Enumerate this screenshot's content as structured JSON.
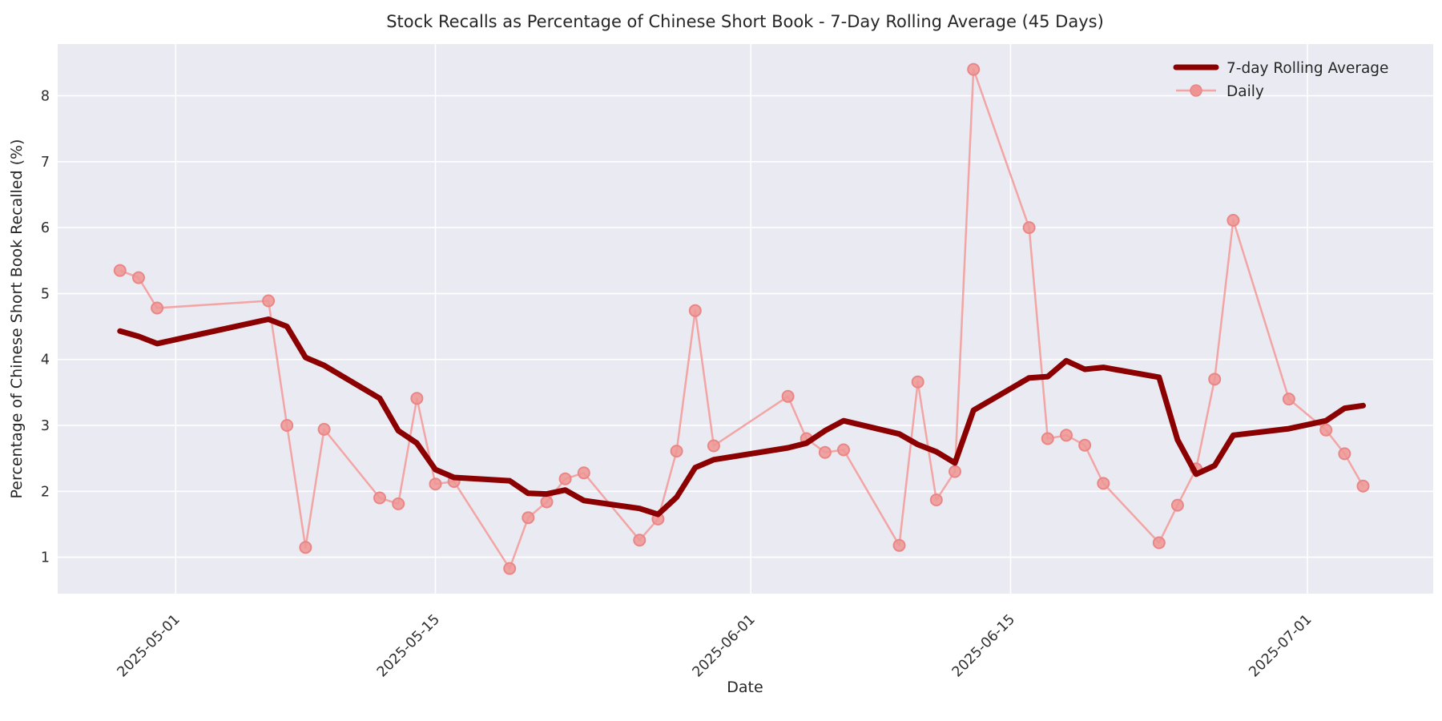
{
  "figure": {
    "title": "Stock Recalls as Percentage of Chinese Short Book - 7-Day Rolling Average (45 Days)",
    "xlabel": "Date",
    "ylabel": "Percentage of Chinese Short Book Recalled (%)"
  },
  "legend": {
    "rolling_label": "7-day Rolling Average",
    "daily_label": "Daily"
  },
  "colors": {
    "plot_bg": "#EAEAF2",
    "grid": "#FFFFFF",
    "rolling": "#8B0000",
    "daily_line": "#F2A5A4",
    "daily_marker_fill": "#EE9594",
    "daily_marker_edge": "#E98786",
    "text": "#262626"
  },
  "chart_data": {
    "type": "line",
    "title": "Stock Recalls as Percentage of Chinese Short Book - 7-Day Rolling Average (45 Days)",
    "xlabel": "Date",
    "ylabel": "Percentage of Chinese Short Book Recalled (%)",
    "grid": true,
    "legend_position": "upper right",
    "ylim": [
      0.45,
      8.78
    ],
    "y_ticks": [
      1,
      2,
      3,
      4,
      5,
      6,
      7,
      8
    ],
    "x_tick_labels": [
      "2025-05-01",
      "2025-05-15",
      "2025-06-01",
      "2025-06-15",
      "2025-07-01"
    ],
    "dates": [
      "2025-04-28",
      "2025-04-29",
      "2025-04-30",
      "2025-05-06",
      "2025-05-07",
      "2025-05-08",
      "2025-05-09",
      "2025-05-12",
      "2025-05-13",
      "2025-05-14",
      "2025-05-15",
      "2025-05-16",
      "2025-05-19",
      "2025-05-20",
      "2025-05-21",
      "2025-05-22",
      "2025-05-23",
      "2025-05-26",
      "2025-05-27",
      "2025-05-28",
      "2025-05-29",
      "2025-05-30",
      "2025-06-03",
      "2025-06-04",
      "2025-06-05",
      "2025-06-06",
      "2025-06-09",
      "2025-06-10",
      "2025-06-11",
      "2025-06-12",
      "2025-06-13",
      "2025-06-16",
      "2025-06-17",
      "2025-06-18",
      "2025-06-19",
      "2025-06-20",
      "2025-06-23",
      "2025-06-24",
      "2025-06-25",
      "2025-06-26",
      "2025-06-27",
      "2025-06-30",
      "2025-07-02",
      "2025-07-03",
      "2025-07-04"
    ],
    "series": [
      {
        "name": "7-day Rolling Average",
        "style": "thick-line",
        "values": [
          4.43,
          4.35,
          4.24,
          4.61,
          4.5,
          4.03,
          3.91,
          3.41,
          2.92,
          2.73,
          2.33,
          2.21,
          2.16,
          1.97,
          1.96,
          2.02,
          1.86,
          1.74,
          1.65,
          1.91,
          2.36,
          2.48,
          2.66,
          2.73,
          2.92,
          3.07,
          2.87,
          2.71,
          2.6,
          2.43,
          3.23,
          3.72,
          3.74,
          3.98,
          3.85,
          3.88,
          3.73,
          2.78,
          2.26,
          2.39,
          2.85,
          2.95,
          3.07,
          3.26,
          3.3
        ]
      },
      {
        "name": "Daily",
        "style": "thin-line-markers",
        "values": [
          5.35,
          5.24,
          4.78,
          4.89,
          3.0,
          1.15,
          2.94,
          1.9,
          1.81,
          3.41,
          2.11,
          2.15,
          0.83,
          1.6,
          1.84,
          2.19,
          2.28,
          1.26,
          1.58,
          2.61,
          4.74,
          2.69,
          3.44,
          2.8,
          2.59,
          2.63,
          1.18,
          3.66,
          1.87,
          2.3,
          8.4,
          6.0,
          2.8,
          2.85,
          2.7,
          2.12,
          1.22,
          1.79,
          2.34,
          3.7,
          6.11,
          3.4,
          2.93,
          2.57,
          2.08
        ]
      }
    ]
  }
}
